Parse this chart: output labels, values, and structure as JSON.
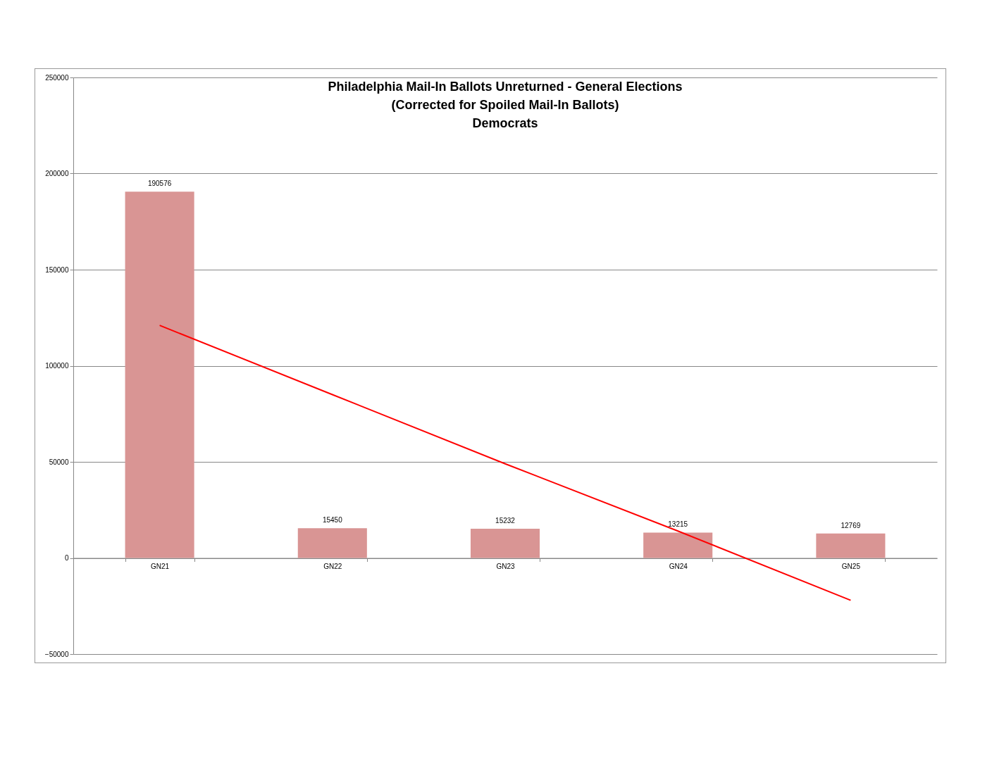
{
  "chart_data": {
    "type": "bar",
    "title": "Philadelphia Mail-In Ballots Unreturned - General Elections\n(Corrected for Spoiled Mail-In Ballots)\nDemocrats",
    "categories": [
      "GN21",
      "GN22",
      "GN23",
      "GN24",
      "GN25"
    ],
    "series": [
      {
        "color": "#d99594",
        "values": [
          190576,
          15450,
          15232,
          13215,
          12769
        ],
        "value_labels": [
          "190576",
          "15450",
          "15232",
          "13215",
          "12769"
        ]
      },
      {
        "type": "line",
        "color": "#ff0000",
        "x": [
          "GN21",
          "GN22",
          "GN23",
          "GN24",
          "GN25"
        ],
        "values": [
          121000,
          85000,
          49000,
          14000,
          -22000
        ]
      }
    ],
    "ylim": [
      -50000,
      250000
    ],
    "yticks": [
      -50000,
      0,
      50000,
      100000,
      150000,
      200000,
      250000
    ],
    "grid": "y",
    "marker": "none",
    "line_style": "solid"
  }
}
